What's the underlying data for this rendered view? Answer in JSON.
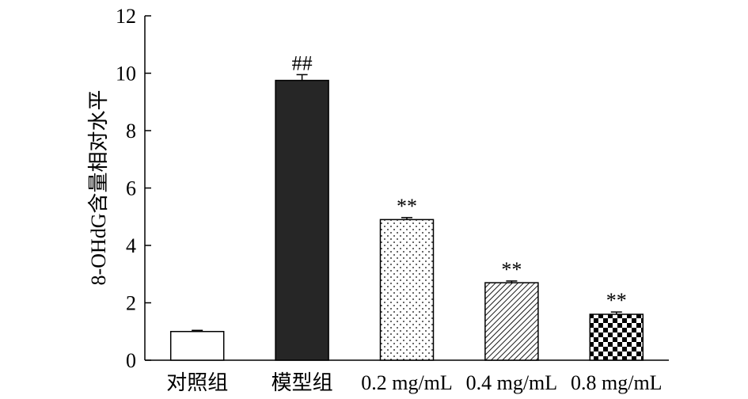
{
  "chart_data": {
    "type": "bar",
    "title": "",
    "xlabel": "",
    "ylabel": "8-OHdG含量相对水平",
    "ylim": [
      0,
      12
    ],
    "yticks": [
      0,
      2,
      4,
      6,
      8,
      10,
      12
    ],
    "grid": false,
    "legend": "none",
    "categories": [
      "对照组",
      "模型组",
      "0.2 mg/mL",
      "0.4 mg/mL",
      "0.8 mg/mL"
    ],
    "values": [
      1.0,
      9.75,
      4.9,
      2.7,
      1.6
    ],
    "errors": [
      0.04,
      0.2,
      0.07,
      0.06,
      0.08
    ],
    "annotations": [
      "",
      "##",
      "**",
      "**",
      "**"
    ],
    "fills": [
      "white",
      "solid",
      "dots",
      "diagonal",
      "checker"
    ],
    "colors": {
      "bar_edge": "#000000",
      "solid_fill": "#262626",
      "background": "#ffffff"
    }
  }
}
